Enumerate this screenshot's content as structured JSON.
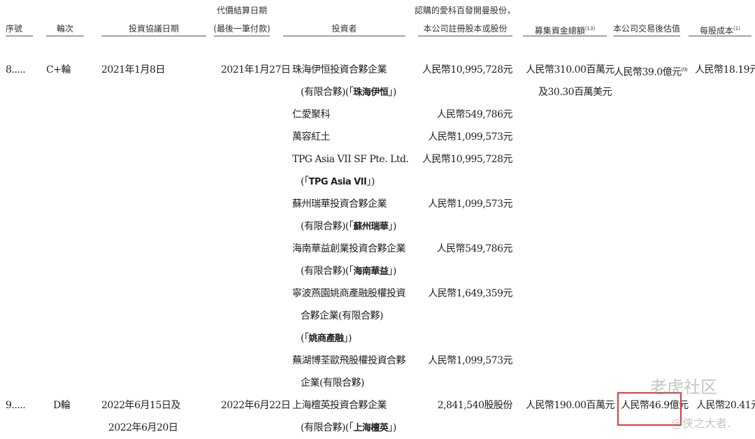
{
  "headers": {
    "seq": "序號",
    "round": "輪次",
    "agreement_date": "投資協議日期",
    "settlement_date_1": "代價結算日期",
    "settlement_date_2": "(最後一筆付款)",
    "investor": "投資者",
    "shares_1": "認購的愛科百發開曼股份，",
    "shares_2": "本公司註冊股本或股份",
    "funds": "募集資金總額",
    "funds_note": "(13)",
    "valuation": "本公司交易後估值",
    "cost": "每股成本",
    "cost_note": "(1)"
  },
  "rows": [
    {
      "seq": "8.....",
      "round": "C+輪",
      "agreement_date": [
        "2021年1月8日"
      ],
      "settlement_date": "2021年1月27日",
      "funds": [
        "人民幣310.00百萬元",
        "及30.30百萬美元"
      ],
      "valuation": "人民幣39.0億元",
      "valuation_note": "(9)",
      "cost": "人民幣18.19元",
      "investors": [
        {
          "lines": [
            "珠海伊恒投資合夥企業",
            "(有限合夥)(「",
            "珠海伊恒",
            "」)"
          ],
          "amount": "人民幣10,995,728元"
        },
        {
          "lines": [
            "仁愛聚科"
          ],
          "amount": "人民幣549,786元"
        },
        {
          "lines": [
            "萬容紅土"
          ],
          "amount": "人民幣1,099,573元"
        },
        {
          "lines": [
            "TPG Asia VII SF Pte. Ltd.",
            "(「",
            "TPG Asia VII",
            "」)"
          ],
          "amount": "人民幣10,995,728元"
        },
        {
          "lines": [
            "蘇州瑞華投資合夥企業",
            "(有限合夥)(「",
            "蘇州瑞華",
            "」)"
          ],
          "amount": "人民幣1,099,573元"
        },
        {
          "lines": [
            "海南華益創業投資合夥企業",
            "(有限合夥)(「",
            "海南華益",
            "」)"
          ],
          "amount": "人民幣549,786元"
        },
        {
          "lines": [
            "寧波燕園姚商產融股權投資",
            "合夥企業(有限合夥)",
            "(「",
            "姚商產融",
            "」)"
          ],
          "amount": "人民幣1,649,359元"
        },
        {
          "lines": [
            "蕪湖博荃歐飛股權投資合夥",
            "企業(有限合夥)"
          ],
          "amount": "人民幣1,099,573元"
        }
      ]
    },
    {
      "seq": "9.....",
      "round": "D輪",
      "agreement_date": [
        "2022年6月15日及",
        "2022年6月20日"
      ],
      "settlement_date": "2022年6月22日",
      "funds": [
        "人民幣190.00百萬元"
      ],
      "valuation": "人民幣46.9億元",
      "cost": "人民幣20.41元",
      "investors": [
        {
          "lines": [
            "上海檀英投資合夥企業",
            "(有限合夥)(「",
            "上海檀英",
            "」)"
          ],
          "amount": "2,841,540股股份"
        }
      ]
    }
  ],
  "watermark": {
    "line1": "老虎社区",
    "line2": "@侠之大者."
  },
  "colors": {
    "highlight_box": "#e0393e"
  }
}
